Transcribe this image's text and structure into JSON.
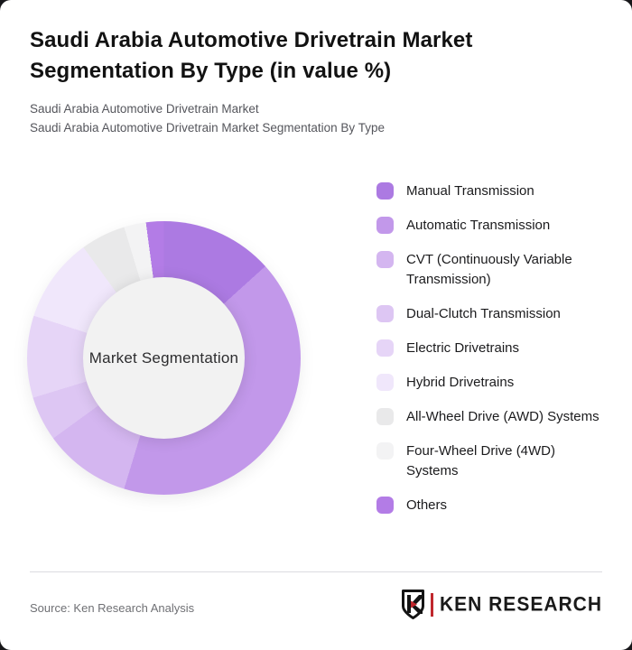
{
  "header": {
    "title": "Saudi Arabia Automotive Drivetrain Market Segmentation By Type (in value %)",
    "subtitle_line1": "Saudi Arabia Automotive Drivetrain Market",
    "subtitle_line2": "Saudi Arabia Automotive Drivetrain Market Segmentation By Type"
  },
  "chart_data": {
    "type": "pie",
    "donut": true,
    "title": "Saudi Arabia Automotive Drivetrain Market Segmentation By Type (in value %)",
    "center_label": "Market Segmentation",
    "legend_position": "right",
    "start_angle_deg": 0,
    "direction": "clockwise",
    "categories": [
      "Manual Transmission",
      "Automatic Transmission",
      "CVT (Continuously Variable Transmission)",
      "Dual-Clutch Transmission",
      "Electric Drivetrains",
      "Hybrid Drivetrains",
      "All-Wheel Drive (AWD) Systems",
      "Four-Wheel Drive (4WD) Systems",
      "Others"
    ],
    "values": [
      13.3,
      41.4,
      10.3,
      5.3,
      9.7,
      10.0,
      5.3,
      2.6,
      2.1
    ],
    "series": [
      {
        "name": "Manual Transmission",
        "value": 13.3,
        "color": "#ac7ae2"
      },
      {
        "name": "Automatic Transmission",
        "value": 41.4,
        "color": "#c298ea"
      },
      {
        "name": "CVT (Continuously Variable Transmission)",
        "value": 10.3,
        "color": "#d4b6f0"
      },
      {
        "name": "Dual-Clutch Transmission",
        "value": 5.3,
        "color": "#ddc6f3"
      },
      {
        "name": "Electric Drivetrains",
        "value": 9.7,
        "color": "#e6d5f7"
      },
      {
        "name": "Hybrid Drivetrains",
        "value": 10.0,
        "color": "#f0e7fb"
      },
      {
        "name": "All-Wheel Drive (AWD) Systems",
        "value": 5.3,
        "color": "#e9e9ea"
      },
      {
        "name": "Four-Wheel Drive (4WD) Systems",
        "value": 2.6,
        "color": "#f3f3f4"
      },
      {
        "name": "Others",
        "value": 2.1,
        "color": "#b37ce6"
      }
    ],
    "hole_color": "#f2f2f2",
    "values_note": "percent of value, estimated from arc angles; data labels not shown in chart"
  },
  "footer": {
    "source": "Source: Ken Research Analysis",
    "brand_name": "KEN RESEARCH",
    "brand_letter": "K",
    "brand_red": "#c0272d",
    "brand_black": "#1a1a1a"
  }
}
